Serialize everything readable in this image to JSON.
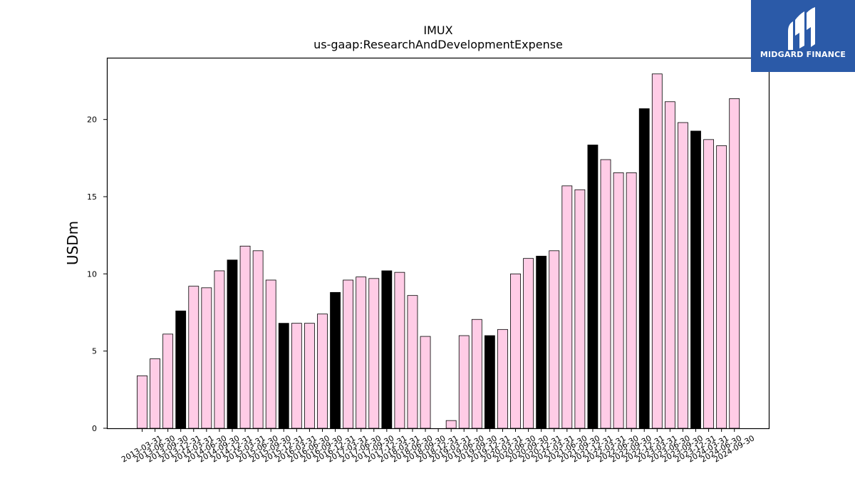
{
  "chart_data": {
    "type": "bar",
    "title": "IMUX",
    "subtitle": "us-gaap:ResearchAndDevelopmentExpense",
    "xlabel": "",
    "ylabel": "USDm",
    "ylim": [
      0,
      24
    ],
    "yticks": [
      0,
      5,
      10,
      15,
      20
    ],
    "grid": false,
    "colors": {
      "quarter": "#ffcce6",
      "year_end": "#000000",
      "edge": "#000000"
    },
    "categories": [
      "2013-03-31",
      "2013-06-30",
      "2013-09-30",
      "2013-12-31",
      "2014-03-31",
      "2014-06-30",
      "2014-09-30",
      "2014-12-31",
      "2015-03-31",
      "2015-06-30",
      "2015-09-30",
      "2015-12-31",
      "2016-03-31",
      "2016-06-30",
      "2016-09-30",
      "2016-12-31",
      "2017-03-31",
      "2017-06-30",
      "2017-09-30",
      "2017-12-31",
      "2018-03-31",
      "2018-06-30",
      "2018-09-30",
      "2018-12-31",
      "2019-03-31",
      "2019-06-30",
      "2019-09-30",
      "2019-12-31",
      "2020-03-31",
      "2020-06-30",
      "2020-09-30",
      "2020-12-31",
      "2021-03-31",
      "2021-06-30",
      "2021-09-30",
      "2021-12-31",
      "2022-03-31",
      "2022-06-30",
      "2022-09-30",
      "2022-12-31",
      "2023-03-31",
      "2023-06-30",
      "2023-09-30",
      "2023-12-31",
      "2024-03-31",
      "2024-06-30",
      "2024-09-30"
    ],
    "values": [
      3.4,
      4.5,
      6.1,
      7.6,
      9.2,
      9.1,
      10.2,
      10.9,
      11.8,
      11.5,
      9.6,
      6.8,
      6.8,
      6.8,
      7.4,
      8.8,
      9.6,
      9.8,
      9.7,
      10.2,
      10.1,
      8.6,
      5.95,
      0,
      0.5,
      6.0,
      7.05,
      6.0,
      6.4,
      10.0,
      11.0,
      11.15,
      11.5,
      15.7,
      15.45,
      18.35,
      17.4,
      16.55,
      16.55,
      20.7,
      22.95,
      21.15,
      19.8,
      19.25,
      18.7,
      18.3,
      21.35
    ],
    "year_end_flags": [
      0,
      0,
      0,
      1,
      0,
      0,
      0,
      1,
      0,
      0,
      0,
      1,
      0,
      0,
      0,
      1,
      0,
      0,
      0,
      1,
      0,
      0,
      0,
      1,
      0,
      0,
      0,
      1,
      0,
      0,
      0,
      1,
      0,
      0,
      0,
      1,
      0,
      0,
      0,
      1,
      0,
      0,
      0,
      1,
      0,
      0,
      0
    ]
  },
  "logo": {
    "text": "MIDGARD FINANCE",
    "icon": "midgard-logo-icon"
  }
}
